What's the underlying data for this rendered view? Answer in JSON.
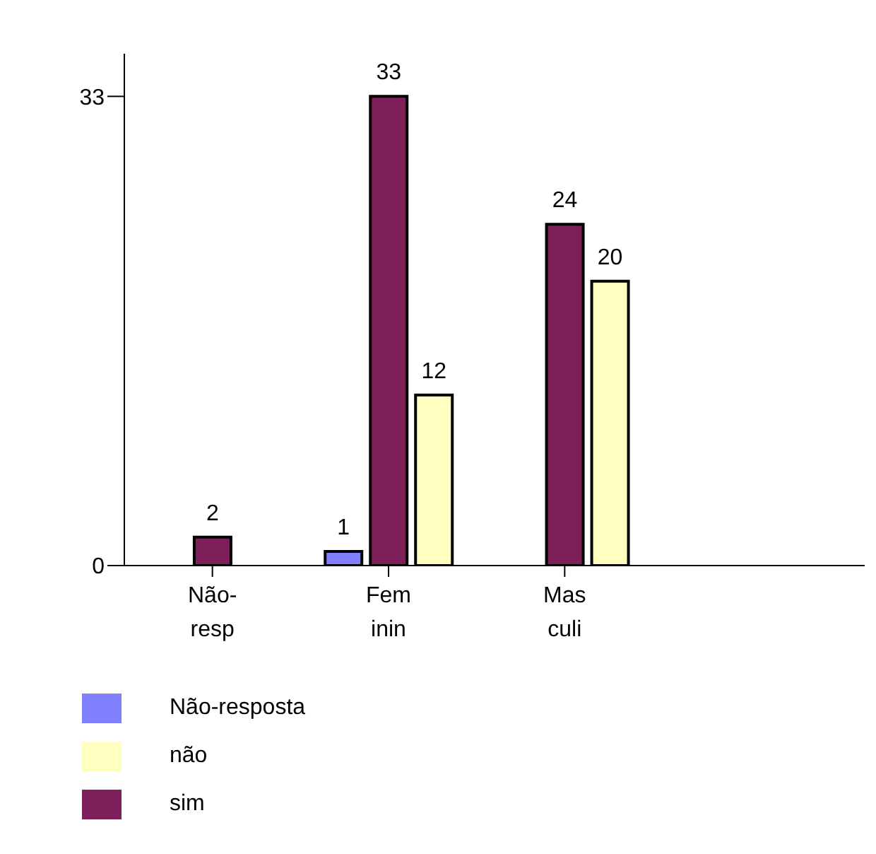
{
  "chart_data": {
    "type": "bar",
    "categories": [
      "Não-resp",
      "Feminin",
      "Masculi"
    ],
    "series": [
      {
        "name": "Não-resposta",
        "color": "#8080ff",
        "values": [
          null,
          1,
          null
        ]
      },
      {
        "name": "sim",
        "color": "#7f1f5a",
        "values": [
          2,
          33,
          24
        ]
      },
      {
        "name": "não",
        "color": "#ffffc0",
        "values": [
          null,
          12,
          20
        ]
      }
    ],
    "ylim": [
      0,
      36
    ],
    "yticks": [
      0,
      33
    ],
    "data_labels": true,
    "grid": false,
    "legend": "bottom"
  }
}
